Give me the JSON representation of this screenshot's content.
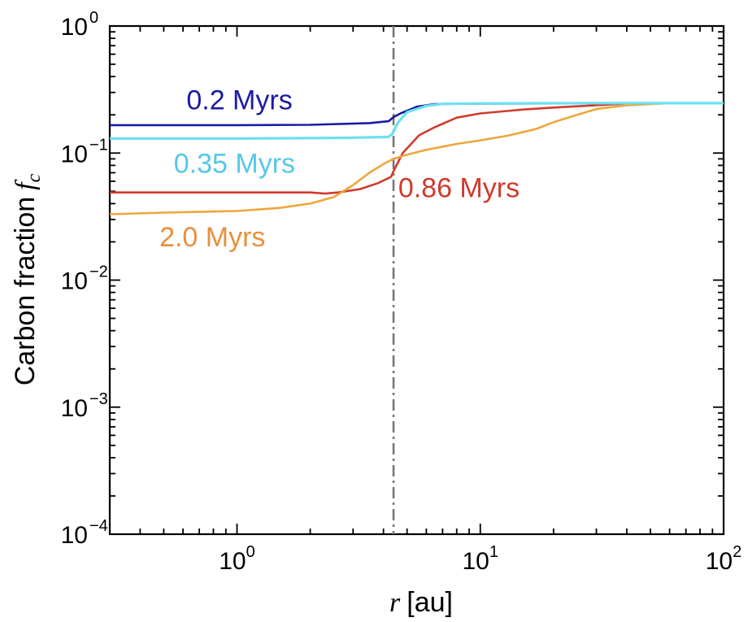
{
  "chart_data": {
    "type": "line",
    "xscale": "log",
    "yscale": "log",
    "xlim": [
      0.3,
      100
    ],
    "ylim": [
      0.0001,
      1
    ],
    "xlabel": {
      "var": "r",
      "unit": "[au]"
    },
    "ylabel": {
      "text": "Carbon fraction",
      "var": "f",
      "sub": "c"
    },
    "x_ticks": [
      {
        "value": 1,
        "base": "10",
        "exp": "0"
      },
      {
        "value": 10,
        "base": "10",
        "exp": "1"
      },
      {
        "value": 100,
        "base": "10",
        "exp": "2"
      }
    ],
    "y_ticks": [
      {
        "value": 1,
        "base": "10",
        "exp": "0"
      },
      {
        "value": 0.1,
        "base": "10",
        "exp": "−1"
      },
      {
        "value": 0.01,
        "base": "10",
        "exp": "−2"
      },
      {
        "value": 0.001,
        "base": "10",
        "exp": "−3"
      },
      {
        "value": 0.0001,
        "base": "10",
        "exp": "−4"
      }
    ],
    "vline": {
      "x": 4.4,
      "style": "dash-dot",
      "color": "#777777"
    },
    "series": [
      {
        "name": "0.2 Myrs",
        "color": "#1a1aa6",
        "x": [
          0.3,
          1.0,
          2.0,
          3.5,
          4.2,
          4.4,
          4.7,
          5.5,
          6.5,
          10,
          20,
          50,
          100
        ],
        "y": [
          0.166,
          0.166,
          0.167,
          0.172,
          0.178,
          0.192,
          0.205,
          0.232,
          0.243,
          0.245,
          0.246,
          0.247,
          0.247
        ]
      },
      {
        "name": "0.35 Myrs",
        "color": "#6ee0f0",
        "x": [
          0.3,
          1.0,
          2.0,
          3.0,
          4.2,
          4.35,
          4.6,
          5.0,
          6.0,
          7.0,
          10,
          30,
          100
        ],
        "y": [
          0.13,
          0.13,
          0.131,
          0.132,
          0.134,
          0.142,
          0.175,
          0.21,
          0.235,
          0.244,
          0.246,
          0.247,
          0.247
        ]
      },
      {
        "name": "0.86 Myrs",
        "color": "#d03a2c",
        "x": [
          0.3,
          1.0,
          2.0,
          2.3,
          2.6,
          3.2,
          3.8,
          4.3,
          4.4,
          4.8,
          5.2,
          5.6,
          6.5,
          8.0,
          10,
          15,
          20,
          30,
          40,
          60,
          100
        ],
        "y": [
          0.049,
          0.049,
          0.049,
          0.048,
          0.049,
          0.052,
          0.058,
          0.065,
          0.072,
          0.1,
          0.118,
          0.138,
          0.16,
          0.19,
          0.205,
          0.22,
          0.228,
          0.238,
          0.245,
          0.247,
          0.247
        ]
      },
      {
        "name": "2.0 Myrs",
        "color": "#eea63a",
        "x": [
          0.3,
          0.5,
          1.0,
          1.5,
          2.0,
          2.5,
          3.0,
          3.5,
          4.0,
          4.4,
          5.0,
          6.0,
          8.0,
          10,
          13,
          17,
          20,
          25,
          30,
          40,
          60,
          100
        ],
        "y": [
          0.033,
          0.034,
          0.035,
          0.037,
          0.04,
          0.045,
          0.056,
          0.07,
          0.082,
          0.09,
          0.097,
          0.106,
          0.118,
          0.126,
          0.137,
          0.155,
          0.175,
          0.2,
          0.222,
          0.238,
          0.247,
          0.247
        ]
      }
    ],
    "annotations": [
      {
        "text": "0.2 Myrs",
        "color": "#1a1aa6",
        "x": 0.62,
        "y": 0.22
      },
      {
        "text": "0.35 Myrs",
        "color": "#56c8e6",
        "x": 0.55,
        "y": 0.07
      },
      {
        "text": "0.86 Myrs",
        "color": "#d03a2c",
        "x": 4.6,
        "y": 0.045
      },
      {
        "text": "2.0 Myrs",
        "color": "#e88f3c",
        "x": 0.48,
        "y": 0.0185
      }
    ],
    "grid": false,
    "legend": "none"
  }
}
